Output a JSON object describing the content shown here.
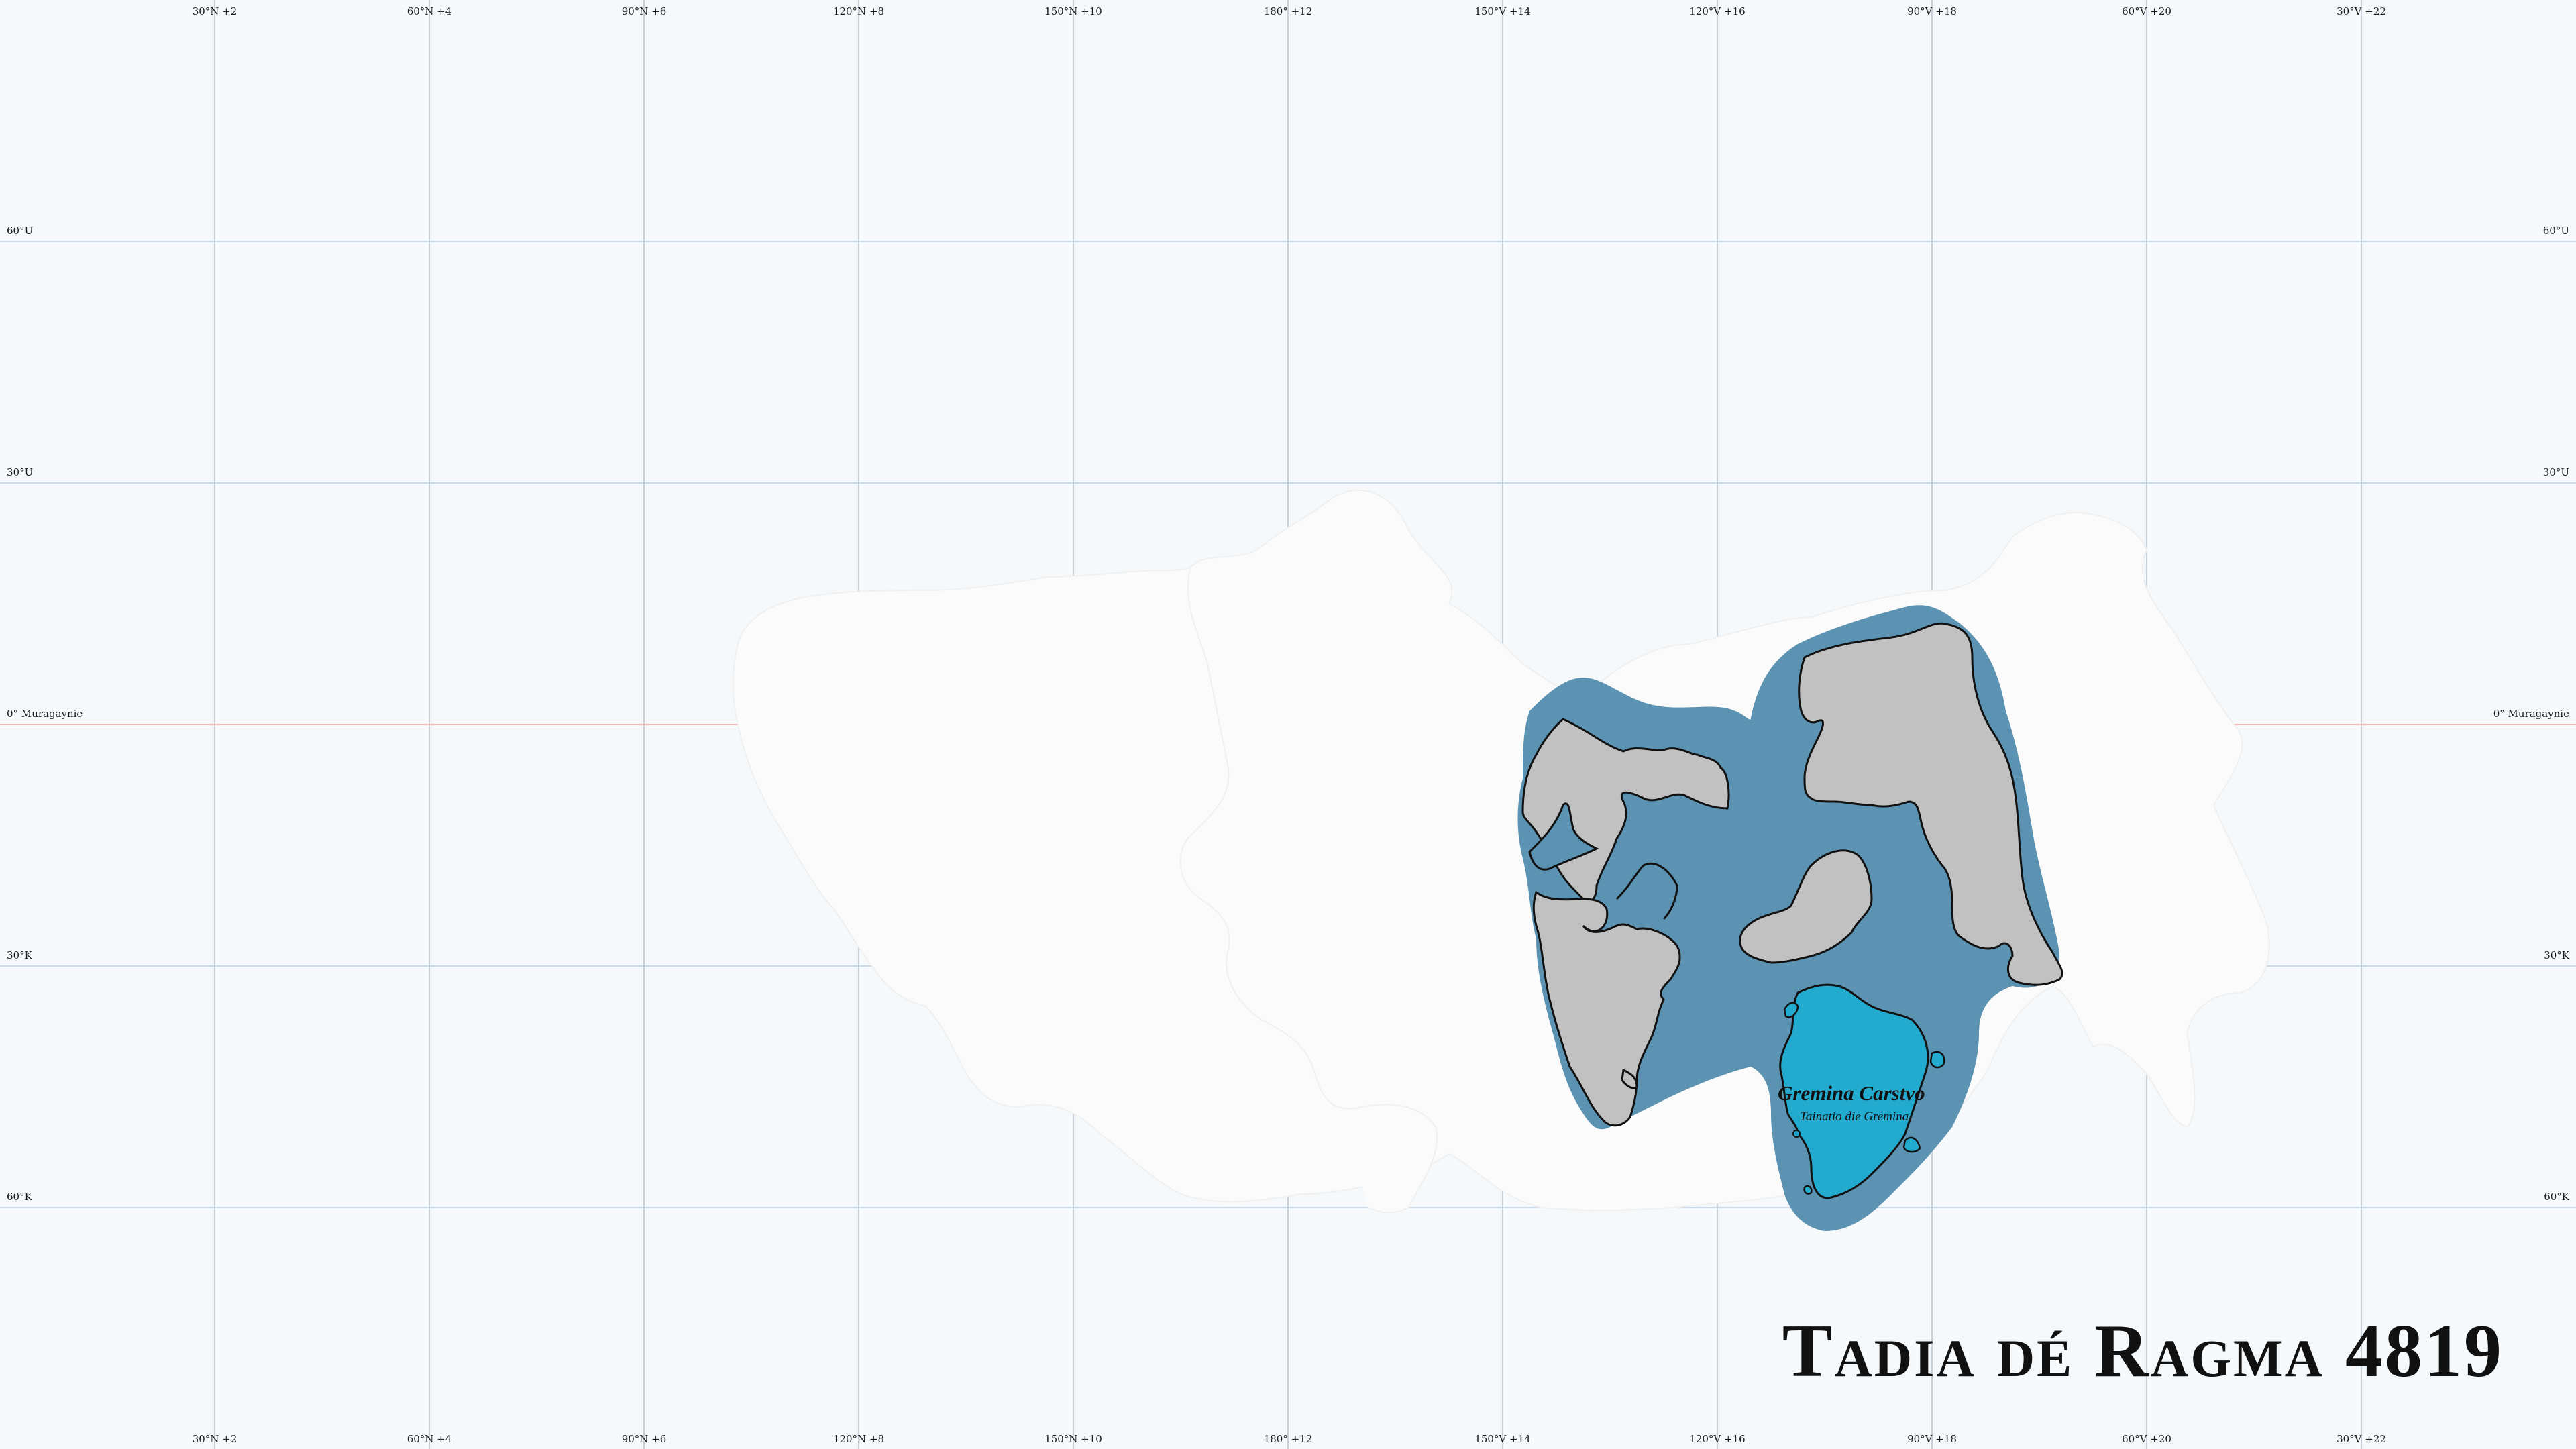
{
  "map": {
    "title": "Tadia dé Ragma 4819",
    "colors": {
      "background": "#f5f9fb",
      "landmass": "#fbfbfb",
      "nation_territory": "#5c93b3",
      "core_region": "#23abcf",
      "disputed_land": "#c1c1c1",
      "equator_line": "#f0b0a8",
      "grid_line": "#bdd0e2"
    },
    "longitude_labels": [
      "30°N +2",
      "60°N +4",
      "90°N +6",
      "120°N +8",
      "150°N +10",
      "180° +12",
      "150°V +14",
      "120°V +16",
      "90°V +18",
      "60°V +20",
      "30°V +22"
    ],
    "latitude_labels": {
      "n60": "60°U",
      "n30": "30°U",
      "equator": "0° Muragaynie",
      "s30": "30°K",
      "s60": "60°K"
    },
    "regions": [
      {
        "name": "Gremina Carstvo",
        "subtitle": "Tainatio die Gremina"
      }
    ]
  }
}
